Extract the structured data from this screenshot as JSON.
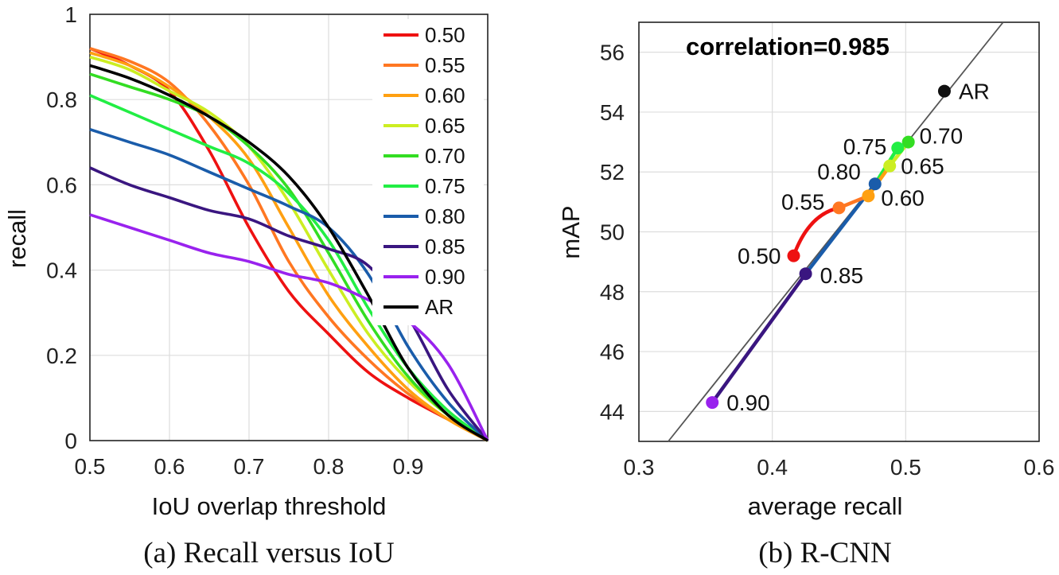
{
  "captions": {
    "a": "(a) Recall versus IoU",
    "b": "(b) R-CNN"
  },
  "chart_data": [
    {
      "type": "line",
      "xlabel": "IoU overlap threshold",
      "ylabel": "recall",
      "xlim": [
        0.5,
        1.0
      ],
      "ylim": [
        0,
        1
      ],
      "xticks": [
        "0.5",
        "0.6",
        "0.7",
        "0.8",
        "0.9"
      ],
      "yticks": [
        "0",
        "0.2",
        "0.4",
        "0.6",
        "0.8",
        "1"
      ],
      "grid": true,
      "legend_position": "top-right",
      "x": [
        0.5,
        0.55,
        0.6,
        0.65,
        0.7,
        0.75,
        0.8,
        0.85,
        0.9,
        0.95,
        1.0
      ],
      "series": [
        {
          "name": "0.50",
          "color": "#ee1111",
          "values": [
            0.92,
            0.88,
            0.82,
            0.68,
            0.5,
            0.35,
            0.25,
            0.16,
            0.1,
            0.05,
            0.0
          ]
        },
        {
          "name": "0.55",
          "color": "#ff7722",
          "values": [
            0.92,
            0.89,
            0.84,
            0.74,
            0.6,
            0.42,
            0.29,
            0.19,
            0.11,
            0.05,
            0.0
          ]
        },
        {
          "name": "0.60",
          "color": "#ffa011",
          "values": [
            0.91,
            0.88,
            0.83,
            0.76,
            0.66,
            0.5,
            0.34,
            0.22,
            0.12,
            0.05,
            0.0
          ]
        },
        {
          "name": "0.65",
          "color": "#ccee22",
          "values": [
            0.9,
            0.87,
            0.82,
            0.77,
            0.69,
            0.56,
            0.4,
            0.25,
            0.14,
            0.06,
            0.0
          ]
        },
        {
          "name": "0.70",
          "color": "#33dd22",
          "values": [
            0.86,
            0.83,
            0.8,
            0.76,
            0.69,
            0.59,
            0.44,
            0.28,
            0.15,
            0.06,
            0.0
          ]
        },
        {
          "name": "0.75",
          "color": "#22ee44",
          "values": [
            0.81,
            0.77,
            0.73,
            0.69,
            0.65,
            0.58,
            0.47,
            0.31,
            0.17,
            0.07,
            0.0
          ]
        },
        {
          "name": "0.80",
          "color": "#1a5caa",
          "values": [
            0.73,
            0.7,
            0.67,
            0.63,
            0.59,
            0.55,
            0.5,
            0.39,
            0.22,
            0.09,
            0.0
          ]
        },
        {
          "name": "0.85",
          "color": "#3a1680",
          "values": [
            0.64,
            0.6,
            0.57,
            0.54,
            0.52,
            0.48,
            0.45,
            0.41,
            0.29,
            0.12,
            0.0
          ]
        },
        {
          "name": "0.90",
          "color": "#9922ee",
          "values": [
            0.53,
            0.5,
            0.47,
            0.44,
            0.42,
            0.39,
            0.37,
            0.33,
            0.28,
            0.18,
            0.0
          ]
        },
        {
          "name": "AR",
          "color": "#000000",
          "values": [
            0.88,
            0.85,
            0.81,
            0.76,
            0.7,
            0.62,
            0.5,
            0.34,
            0.17,
            0.06,
            0.0
          ]
        }
      ]
    },
    {
      "type": "scatter",
      "xlabel": "average recall",
      "ylabel": "mAP",
      "xlim": [
        0.3,
        0.6
      ],
      "ylim": [
        43,
        57
      ],
      "xticks": [
        "0.3",
        "0.4",
        "0.5",
        "0.6"
      ],
      "yticks": [
        "44",
        "46",
        "48",
        "50",
        "52",
        "54",
        "56"
      ],
      "grid": true,
      "annotation": "correlation=0.985",
      "fit_line": {
        "x": [
          0.322,
          0.573
        ],
        "y": [
          43.0,
          57.0
        ],
        "color": "#555555"
      },
      "points": [
        {
          "label": "0.50",
          "x": 0.416,
          "y": 49.2,
          "color": "#ee1111"
        },
        {
          "label": "0.55",
          "x": 0.45,
          "y": 50.8,
          "color": "#ff7722"
        },
        {
          "label": "0.60",
          "x": 0.472,
          "y": 51.2,
          "color": "#ffa011"
        },
        {
          "label": "0.65",
          "x": 0.488,
          "y": 52.2,
          "color": "#ccee22"
        },
        {
          "label": "0.70",
          "x": 0.502,
          "y": 53.0,
          "color": "#33dd22"
        },
        {
          "label": "0.75",
          "x": 0.494,
          "y": 52.8,
          "color": "#22ee44"
        },
        {
          "label": "0.80",
          "x": 0.477,
          "y": 51.6,
          "color": "#1a5caa"
        },
        {
          "label": "0.85",
          "x": 0.425,
          "y": 48.6,
          "color": "#3a1680"
        },
        {
          "label": "0.90",
          "x": 0.355,
          "y": 44.3,
          "color": "#9922ee"
        },
        {
          "label": "AR",
          "x": 0.529,
          "y": 54.7,
          "color": "#111111"
        }
      ],
      "path_order": [
        "0.90",
        "0.85",
        "0.80",
        "0.75",
        "0.70",
        "0.65",
        "0.60",
        "0.55",
        "0.50"
      ]
    }
  ]
}
